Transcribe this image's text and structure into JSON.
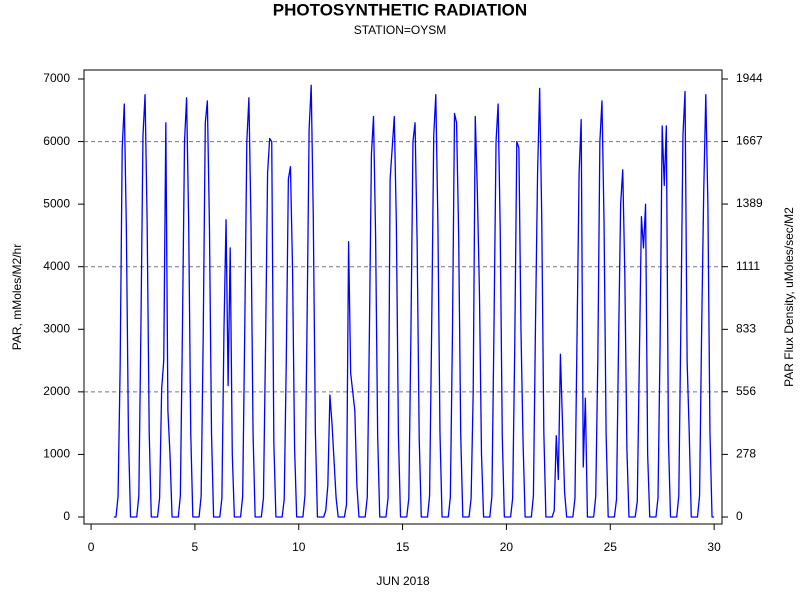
{
  "chart_data": {
    "type": "line",
    "title": "PHOTOSYNTHETIC RADIATION",
    "subtitle": "STATION=OYSM",
    "xlabel": "JUN 2018",
    "ylabel": "PAR, mMoles/M2/hr",
    "y2label": "PAR Flux Density, uMoles/sec/M2",
    "color": "#0000ff",
    "xlim": [
      -0.34,
      30.38
    ],
    "xticks": [
      0,
      5,
      10,
      15,
      20,
      25,
      30
    ],
    "ylim": [
      -112,
      7144
    ],
    "yticks": [
      0,
      1000,
      2000,
      3000,
      4000,
      5000,
      6000,
      7000
    ],
    "y2lim": [
      -31,
      1984
    ],
    "y2ticks": [
      0,
      278,
      556,
      833,
      1111,
      1389,
      1667,
      1944
    ],
    "ygrid": [
      2000,
      4000,
      6000
    ],
    "x": [
      1.1,
      1.2,
      1.3,
      1.4,
      1.5,
      1.6,
      1.7,
      1.8,
      1.9,
      2.2,
      2.3,
      2.4,
      2.5,
      2.6,
      2.7,
      2.8,
      2.9,
      3.2,
      3.3,
      3.4,
      3.5,
      3.6,
      3.7,
      3.8,
      3.9,
      4.2,
      4.3,
      4.4,
      4.5,
      4.6,
      4.7,
      4.8,
      4.9,
      5.2,
      5.3,
      5.4,
      5.5,
      5.6,
      5.7,
      5.8,
      5.9,
      6.2,
      6.3,
      6.4,
      6.5,
      6.6,
      6.7,
      6.8,
      6.9,
      7.2,
      7.3,
      7.4,
      7.5,
      7.6,
      7.7,
      7.8,
      7.9,
      8.2,
      8.3,
      8.4,
      8.5,
      8.6,
      8.7,
      8.8,
      8.9,
      9.2,
      9.3,
      9.4,
      9.5,
      9.6,
      9.7,
      9.8,
      9.9,
      10.2,
      10.3,
      10.4,
      10.5,
      10.6,
      10.7,
      10.8,
      10.9,
      11.2,
      11.3,
      11.4,
      11.5,
      11.6,
      11.7,
      11.8,
      11.9,
      12.2,
      12.3,
      12.4,
      12.5,
      12.6,
      12.7,
      12.8,
      12.9,
      13.2,
      13.3,
      13.4,
      13.5,
      13.6,
      13.7,
      13.8,
      13.9,
      14.2,
      14.3,
      14.4,
      14.5,
      14.6,
      14.7,
      14.8,
      14.9,
      15.2,
      15.3,
      15.4,
      15.5,
      15.6,
      15.7,
      15.8,
      15.9,
      16.2,
      16.3,
      16.4,
      16.5,
      16.6,
      16.7,
      16.8,
      16.9,
      17.2,
      17.3,
      17.4,
      17.5,
      17.6,
      17.7,
      17.8,
      17.9,
      18.2,
      18.3,
      18.4,
      18.5,
      18.6,
      18.7,
      18.8,
      18.9,
      19.2,
      19.3,
      19.4,
      19.5,
      19.6,
      19.7,
      19.8,
      19.9,
      20.2,
      20.3,
      20.4,
      20.5,
      20.6,
      20.7,
      20.8,
      20.9,
      21.2,
      21.3,
      21.4,
      21.5,
      21.6,
      21.7,
      21.8,
      21.9,
      22.2,
      22.3,
      22.4,
      22.5,
      22.6,
      22.7,
      22.8,
      22.9,
      23.2,
      23.3,
      23.4,
      23.5,
      23.6,
      23.7,
      23.8,
      23.9,
      24.2,
      24.3,
      24.4,
      24.5,
      24.6,
      24.7,
      24.8,
      24.9,
      25.2,
      25.3,
      25.4,
      25.5,
      25.6,
      25.7,
      25.8,
      25.9,
      26.2,
      26.3,
      26.4,
      26.5,
      26.6,
      26.7,
      26.8,
      26.9,
      27.2,
      27.3,
      27.4,
      27.5,
      27.6,
      27.7,
      27.8,
      27.9,
      28.2,
      28.3,
      28.4,
      28.5,
      28.6,
      28.7,
      28.8,
      28.9,
      29.2,
      29.3,
      29.4,
      29.5,
      29.6,
      29.7,
      29.8,
      29.9,
      30
    ],
    "values": [
      0,
      0,
      330,
      2400,
      5900,
      6600,
      4600,
      1300,
      0,
      0,
      340,
      3000,
      6100,
      6750,
      4700,
      1350,
      0,
      0,
      300,
      2050,
      2500,
      6300,
      1700,
      1000,
      0,
      0,
      340,
      3000,
      6000,
      6700,
      4700,
      1340,
      0,
      0,
      330,
      2900,
      6300,
      6650,
      4650,
      1330,
      0,
      0,
      300,
      3000,
      4750,
      2100,
      4300,
      1000,
      0,
      0,
      330,
      3000,
      6000,
      6700,
      4700,
      1340,
      0,
      0,
      300,
      2700,
      5500,
      6050,
      6000,
      1200,
      0,
      0,
      280,
      2500,
      5400,
      5600,
      4000,
      1100,
      0,
      0,
      340,
      3100,
      6200,
      6900,
      4800,
      1380,
      0,
      0,
      100,
      500,
      1950,
      1500,
      900,
      300,
      0,
      0,
      200,
      4400,
      2300,
      2000,
      1700,
      500,
      0,
      0,
      320,
      2900,
      5800,
      6400,
      4500,
      1300,
      0,
      0,
      300,
      5400,
      5900,
      6400,
      4700,
      1300,
      0,
      0,
      300,
      2900,
      6000,
      6300,
      4400,
      1260,
      0,
      0,
      340,
      3000,
      6100,
      6750,
      4700,
      1350,
      0,
      0,
      320,
      2900,
      6450,
      6300,
      4500,
      1300,
      0,
      0,
      300,
      2000,
      6400,
      5200,
      3600,
      1000,
      0,
      0,
      330,
      3000,
      6000,
      6600,
      4600,
      1300,
      0,
      0,
      300,
      2700,
      6000,
      5900,
      3000,
      1200,
      0,
      0,
      340,
      3100,
      5500,
      6850,
      4800,
      1370,
      0,
      0,
      100,
      1300,
      600,
      2600,
      1500,
      400,
      0,
      0,
      300,
      2900,
      5500,
      6350,
      800,
      1900,
      0,
      0,
      330,
      2500,
      6000,
      6650,
      4700,
      1330,
      0,
      0,
      280,
      2800,
      5000,
      5550,
      3900,
      1100,
      0,
      0,
      250,
      2500,
      4800,
      4300,
      5000,
      1000,
      0,
      0,
      310,
      2800,
      6250,
      5300,
      6250,
      1250,
      0,
      0,
      340,
      3100,
      6100,
      6800,
      2500,
      1360,
      0,
      0,
      340,
      3000,
      5200,
      6750,
      5000,
      1350,
      0,
      0
    ]
  }
}
